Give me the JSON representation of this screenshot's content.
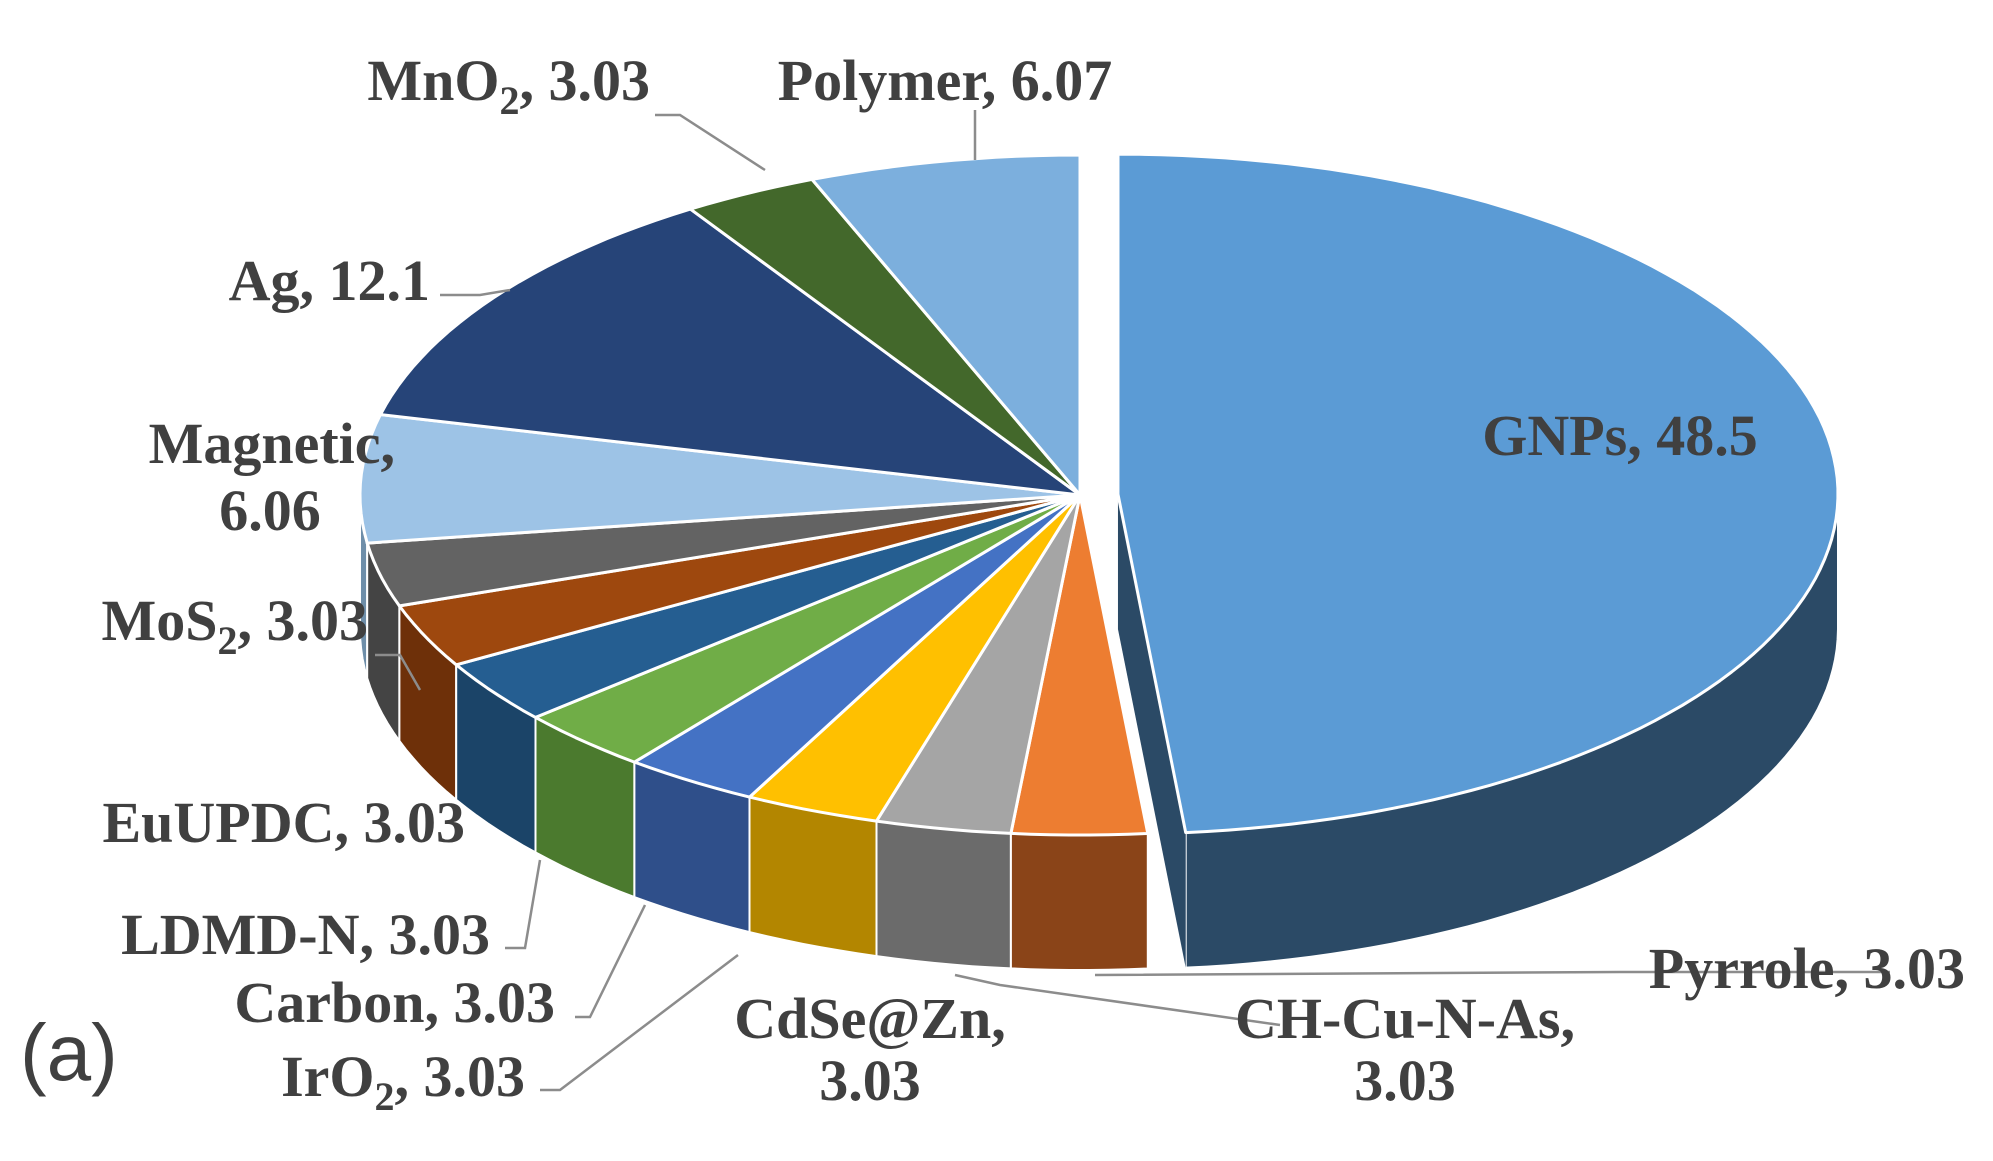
{
  "chart_data": {
    "type": "pie",
    "style": "3d-exploded",
    "panel_label": "(a)",
    "slices": [
      {
        "name": "GNPs",
        "value": 48.5,
        "label": "GNPs, 48.5",
        "color": "#5b9bd5",
        "side": "#2b4a66"
      },
      {
        "name": "Pyrrole",
        "value": 3.03,
        "label": "Pyrrole, 3.03",
        "color": "#ed7d31",
        "side": "#8a4418"
      },
      {
        "name": "CH-Cu-N-As",
        "value": 3.03,
        "label": "CH-Cu-N-As, 3.03",
        "color": "#a5a5a5",
        "side": "#6b6b6b"
      },
      {
        "name": "CdSe@Zn",
        "value": 3.03,
        "label": "CdSe@Zn, 3.03",
        "color": "#ffc000",
        "side": "#b38600"
      },
      {
        "name": "IrO2",
        "value": 3.03,
        "label": "IrO2, 3.03",
        "color": "#4472c4",
        "side": "#2f4f8a"
      },
      {
        "name": "Carbon",
        "value": 3.03,
        "label": "Carbon, 3.03",
        "color": "#70ad47",
        "side": "#4b7a2e"
      },
      {
        "name": "LDMD-N",
        "value": 3.03,
        "label": "LDMD-N, 3.03",
        "color": "#255e91",
        "side": "#1b4468"
      },
      {
        "name": "EuUPDC",
        "value": 3.03,
        "label": "EuUPDC, 3.03",
        "color": "#9e480e",
        "side": "#6e3009"
      },
      {
        "name": "MoS2",
        "value": 3.03,
        "label": "MoS2, 3.03",
        "color": "#636363",
        "side": "#444444"
      },
      {
        "name": "Magnetic",
        "value": 6.06,
        "label": "Magnetic, 6.06",
        "color": "#9dc3e6",
        "side": "#6e8ea9"
      },
      {
        "name": "Ag",
        "value": 12.1,
        "label": "Ag, 12.1",
        "color": "#264478",
        "side": "#1a2f54"
      },
      {
        "name": "MnO2",
        "value": 3.03,
        "label": "MnO2, 3.03",
        "color": "#43682b",
        "side": "#2f4a1e"
      },
      {
        "name": "Polymer",
        "value": 6.07,
        "label": "Polymer, 6.07",
        "color": "#7cafdd",
        "side": "#55799b"
      }
    ]
  }
}
